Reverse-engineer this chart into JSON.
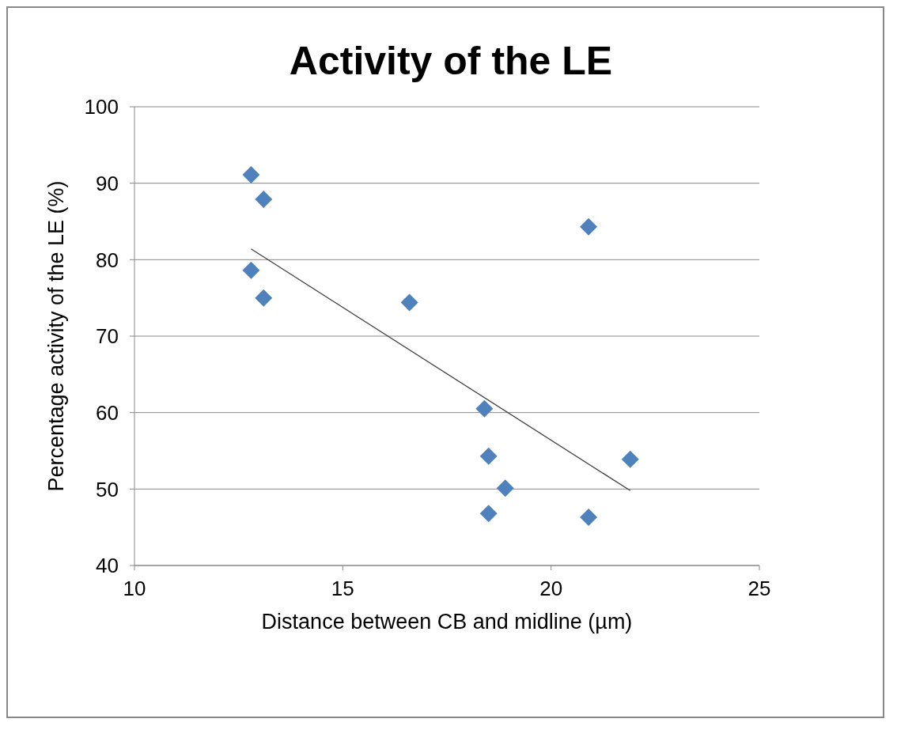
{
  "chart_data": {
    "type": "scatter",
    "title": "Activity of the LE",
    "xlabel": "Distance between  CB and midline  (µm)",
    "ylabel": "Percentage activity of the LE (%)",
    "xlim": [
      10,
      25
    ],
    "xticks": [
      10,
      15,
      20,
      25
    ],
    "ylim": [
      40,
      100
    ],
    "yticks": [
      40,
      50,
      60,
      70,
      80,
      90,
      100
    ],
    "grid": "y",
    "marker": "diamond",
    "series": [
      {
        "color": "#4f81bd",
        "x": [
          12.8,
          13.1,
          12.8,
          13.1,
          16.6,
          18.4,
          18.5,
          18.9,
          18.5,
          20.9,
          20.9,
          21.9
        ],
        "values": [
          91.1,
          87.9,
          78.6,
          75.0,
          74.4,
          60.5,
          54.3,
          50.1,
          46.8,
          84.3,
          46.3,
          53.9
        ]
      },
      {
        "type": "line",
        "color": "#404040",
        "marker": "none",
        "x": [
          12.8,
          21.9
        ],
        "values": [
          81.4,
          49.8
        ]
      }
    ]
  }
}
